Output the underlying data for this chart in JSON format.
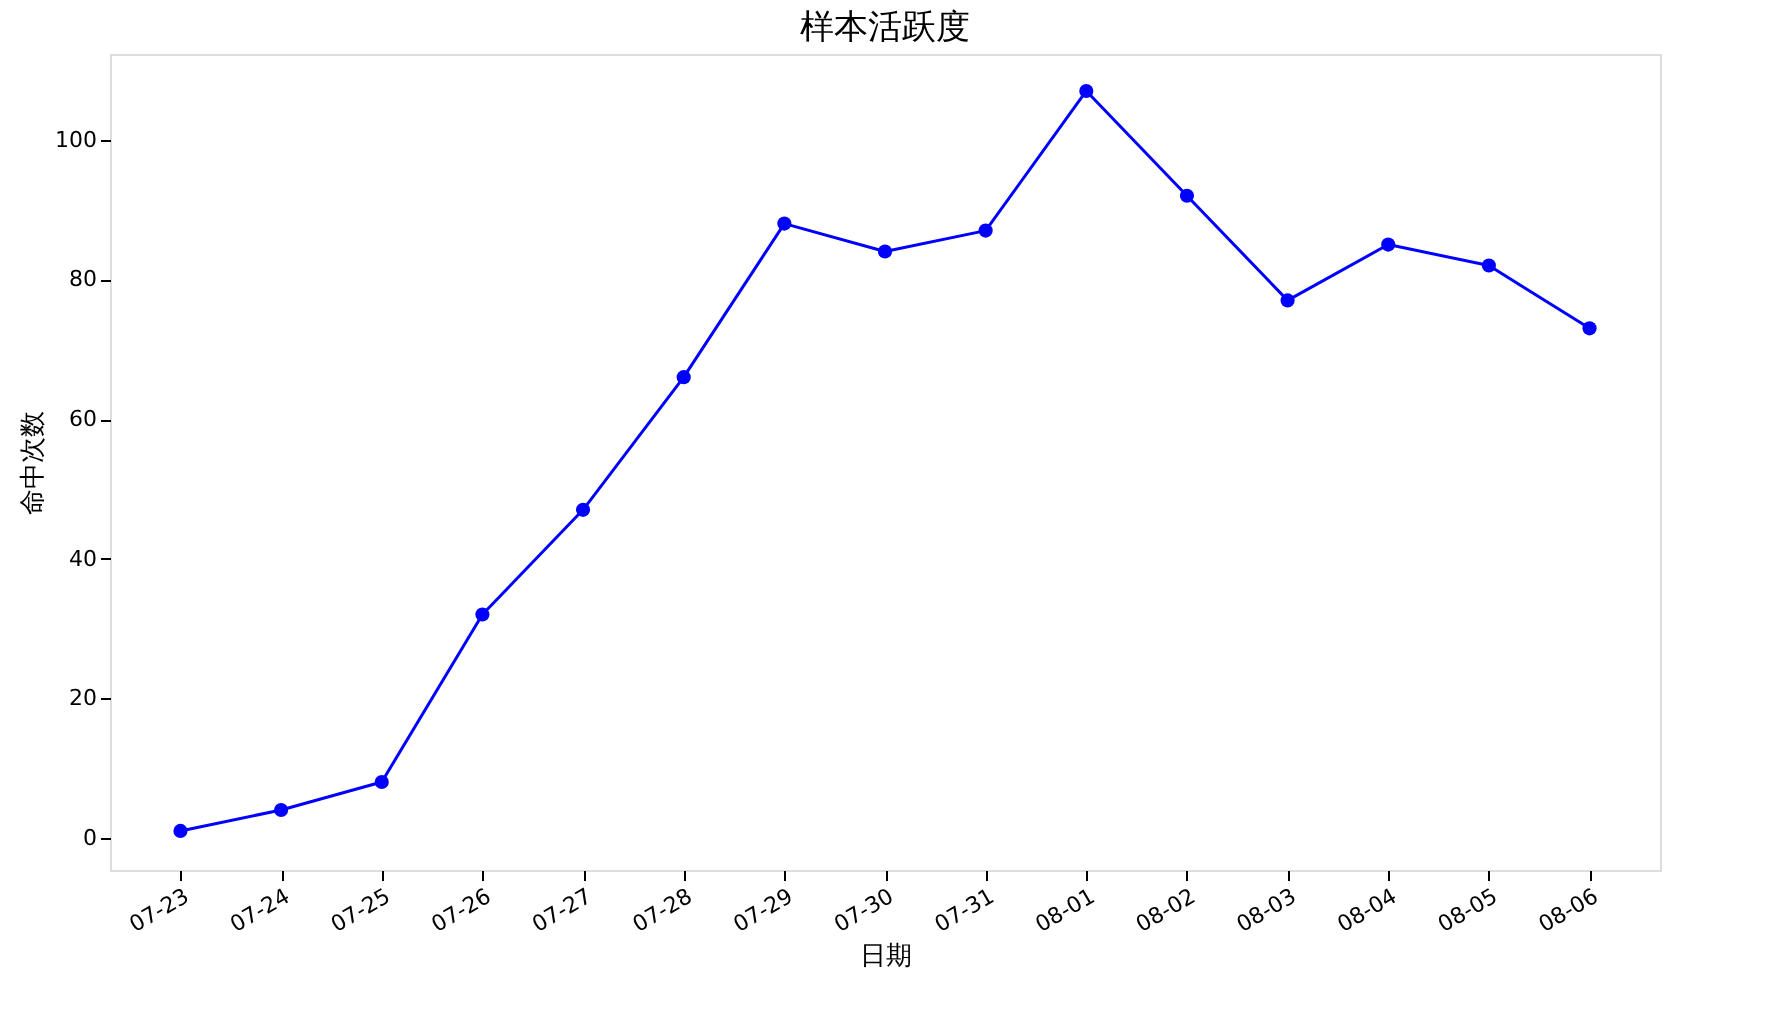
{
  "chart_data": {
    "type": "line",
    "title": "样本活跃度",
    "xlabel": "日期",
    "ylabel": "命中次数",
    "categories": [
      "07-23",
      "07-24",
      "07-25",
      "07-26",
      "07-27",
      "07-28",
      "07-29",
      "07-30",
      "07-31",
      "08-01",
      "08-02",
      "08-03",
      "08-04",
      "08-05",
      "08-06"
    ],
    "series": [
      {
        "color": "#0000ff",
        "values": [
          1,
          4,
          8,
          32,
          47,
          66,
          88,
          84,
          87,
          107,
          92,
          77,
          85,
          82,
          73
        ]
      }
    ],
    "ylim": [
      -4.6,
      112.3
    ],
    "yticks": [
      0,
      20,
      40,
      60,
      80,
      100
    ],
    "grid": false,
    "marker": "circle",
    "line_style": "solid"
  }
}
